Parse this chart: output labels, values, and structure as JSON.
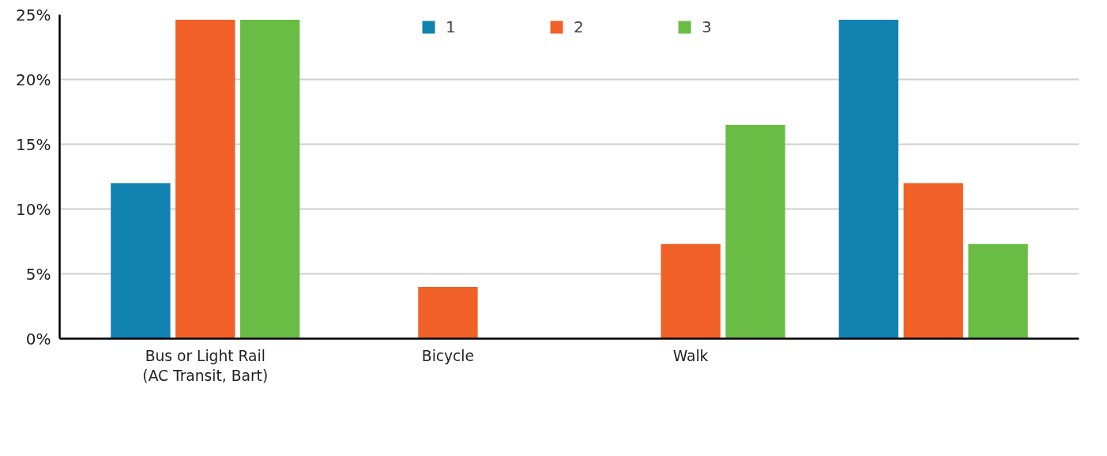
{
  "chart_data": {
    "type": "bar",
    "categories": [
      "Bus or Light Rail\n(AC Transit, Bart)",
      "Bicycle",
      "Walk",
      null
    ],
    "series": [
      {
        "name": "1",
        "color": "#1283b0",
        "values": [
          12,
          null,
          null,
          24.6
        ]
      },
      {
        "name": "2",
        "color": "#f06027",
        "values": [
          24.6,
          4,
          7.3,
          12
        ]
      },
      {
        "name": "3",
        "color": "#69bd45",
        "values": [
          24.6,
          null,
          16.5,
          7.3
        ]
      }
    ],
    "ylim": [
      0,
      25
    ],
    "yticks": [
      {
        "value": 0,
        "label": "0%"
      },
      {
        "value": 5,
        "label": "5%"
      },
      {
        "value": 10,
        "label": "10%"
      },
      {
        "value": 15,
        "label": "15%"
      },
      {
        "value": 20,
        "label": "20%"
      },
      {
        "value": 25,
        "label": "25%"
      }
    ],
    "grid": "y",
    "legend": "top"
  }
}
